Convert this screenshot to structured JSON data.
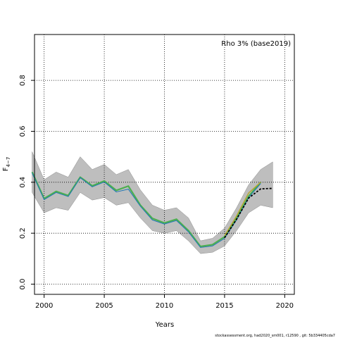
{
  "chart_data": {
    "type": "line",
    "title": "",
    "xlabel": "Years",
    "ylabel_main": "F",
    "ylabel_sub": "4−7",
    "xlim": [
      1999.2,
      2020.8
    ],
    "ylim": [
      -0.04,
      0.98
    ],
    "x_ticks": [
      2000,
      2005,
      2010,
      2015,
      2020
    ],
    "y_ticks": [
      0.0,
      0.2,
      0.4,
      0.6,
      0.8
    ],
    "y_tick_labels": [
      "0.0",
      "0.2",
      "0.4",
      "0.6",
      "0.8"
    ],
    "grid": true,
    "legend_text": "Rho 3% (base2019)",
    "legend_position": "top-right",
    "colors": {
      "band": "#bebebe",
      "band_edge": "#8c8c8c",
      "series_main": "#4caf50",
      "series_blue": "#1f77b4",
      "series_olive": "#b5a630",
      "series_prediction": "#000000"
    },
    "confidence_band": {
      "x": [
        1999,
        2000,
        2001,
        2002,
        2003,
        2004,
        2005,
        2006,
        2007,
        2008,
        2009,
        2010,
        2011,
        2012,
        2013,
        2014,
        2015,
        2016,
        2017,
        2018,
        2019
      ],
      "upper": [
        0.52,
        0.41,
        0.44,
        0.42,
        0.5,
        0.45,
        0.47,
        0.43,
        0.45,
        0.37,
        0.31,
        0.29,
        0.3,
        0.26,
        0.17,
        0.18,
        0.22,
        0.3,
        0.39,
        0.45,
        0.48
      ],
      "lower": [
        0.36,
        0.28,
        0.3,
        0.29,
        0.36,
        0.33,
        0.34,
        0.31,
        0.32,
        0.26,
        0.21,
        0.2,
        0.21,
        0.17,
        0.12,
        0.125,
        0.15,
        0.21,
        0.28,
        0.31,
        0.3
      ]
    },
    "series": [
      {
        "x": [
          1999,
          2000,
          2001,
          2002,
          2003,
          2004,
          2005,
          2006,
          2007,
          2008,
          2009,
          2010,
          2011,
          2012,
          2013,
          2014,
          2015,
          2016,
          2017,
          2018
        ],
        "values": [
          0.44,
          0.336,
          0.364,
          0.348,
          0.42,
          0.386,
          0.405,
          0.368,
          0.385,
          0.31,
          0.258,
          0.24,
          0.255,
          0.21,
          0.148,
          0.155,
          0.186,
          0.26,
          0.345,
          0.4
        ],
        "color_key": "series_main"
      },
      {
        "x": [
          1999,
          2000,
          2001,
          2002,
          2003,
          2004,
          2005,
          2006,
          2007,
          2008,
          2009,
          2010,
          2011,
          2012,
          2013,
          2014,
          2015,
          2016,
          2017,
          2018
        ],
        "values": [
          0.437,
          0.332,
          0.36,
          0.344,
          0.418,
          0.382,
          0.401,
          0.362,
          0.373,
          0.306,
          0.252,
          0.236,
          0.25,
          0.205,
          0.144,
          0.15,
          0.18,
          0.252,
          0.34,
          0.395
        ],
        "color_key": "series_blue"
      },
      {
        "x": [
          2015,
          2016,
          2017,
          2018
        ],
        "values": [
          0.19,
          0.268,
          0.358,
          0.4
        ],
        "color_key": "series_olive"
      }
    ],
    "prediction": {
      "x": [
        2015,
        2016,
        2017,
        2018,
        2019
      ],
      "values": [
        0.182,
        0.255,
        0.338,
        0.374,
        0.376
      ],
      "color_key": "series_prediction"
    }
  },
  "footer": {
    "text": "stockassessment.org, had2020_sm001, r12590 , git: 5b334405cda7"
  }
}
